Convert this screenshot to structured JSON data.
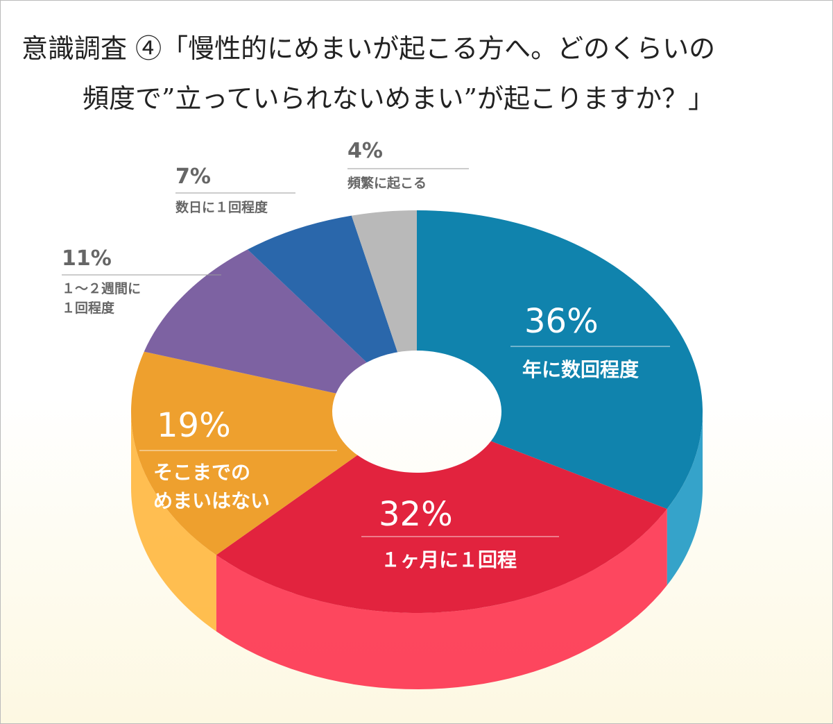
{
  "chart_data": {
    "type": "donut3d",
    "title": [
      "意識調査 ④「慢性的にめまいが起こる方へ。どのくらいの",
      "頻度で”立っていられないめまい”が起こりますか？」"
    ],
    "categories": [
      "年に数回程度",
      "１ヶ月に１回程",
      "そこまでの\nめまいはない",
      "１～２週間に\n１回程度",
      "数日に１回程度",
      "頻繁に起こる"
    ],
    "values": [
      36,
      32,
      19,
      11,
      7,
      4
    ],
    "value_labels": [
      "36%",
      "32%",
      "19%",
      "11%",
      "7%",
      "4%"
    ],
    "colors": [
      "#1083ad",
      "#e2233e",
      "#eea02e",
      "#7d62a2",
      "#2a67ab",
      "#b9b9b9"
    ]
  }
}
